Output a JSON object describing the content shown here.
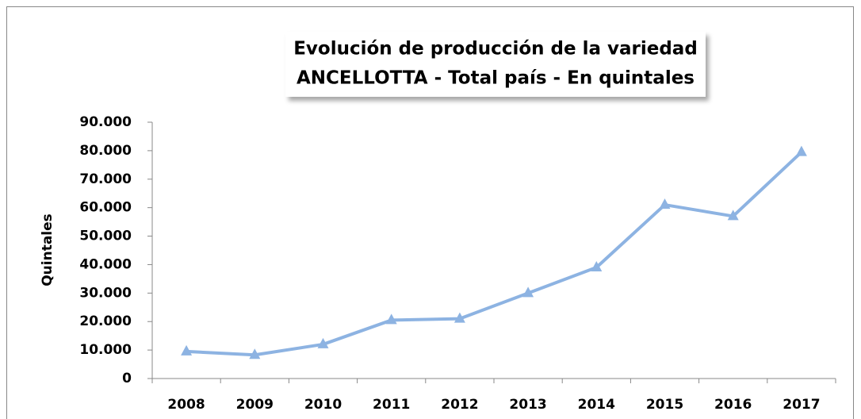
{
  "chart_data": {
    "type": "line",
    "title": [
      "Evolución de producción de la variedad",
      "ANCELLOTTA - Total país - En quintales"
    ],
    "y_label": "Quintales",
    "categories": [
      "2008",
      "2009",
      "2010",
      "2011",
      "2012",
      "2013",
      "2014",
      "2015",
      "2016",
      "2017"
    ],
    "series": [
      {
        "name": "ANCELLOTTA",
        "color": "#8db3e2",
        "values": [
          9500,
          8300,
          12000,
          20500,
          21000,
          30000,
          39000,
          61000,
          57000,
          79500
        ]
      }
    ],
    "ylim": [
      0,
      90000
    ],
    "yticks": [
      0,
      {
        "value": 10000,
        "label": "10.000"
      },
      {
        "value": 20000,
        "label": "20.000"
      },
      {
        "value": 30000,
        "label": "30.000"
      },
      {
        "value": 40000,
        "label": "40.000"
      },
      {
        "value": 50000,
        "label": "50.000"
      },
      {
        "value": 60000,
        "label": "60.000"
      },
      {
        "value": 70000,
        "label": "70.000"
      },
      {
        "value": 80000,
        "label": "80.000"
      },
      {
        "value": 90000,
        "label": "90.000"
      }
    ],
    "grid": false
  }
}
